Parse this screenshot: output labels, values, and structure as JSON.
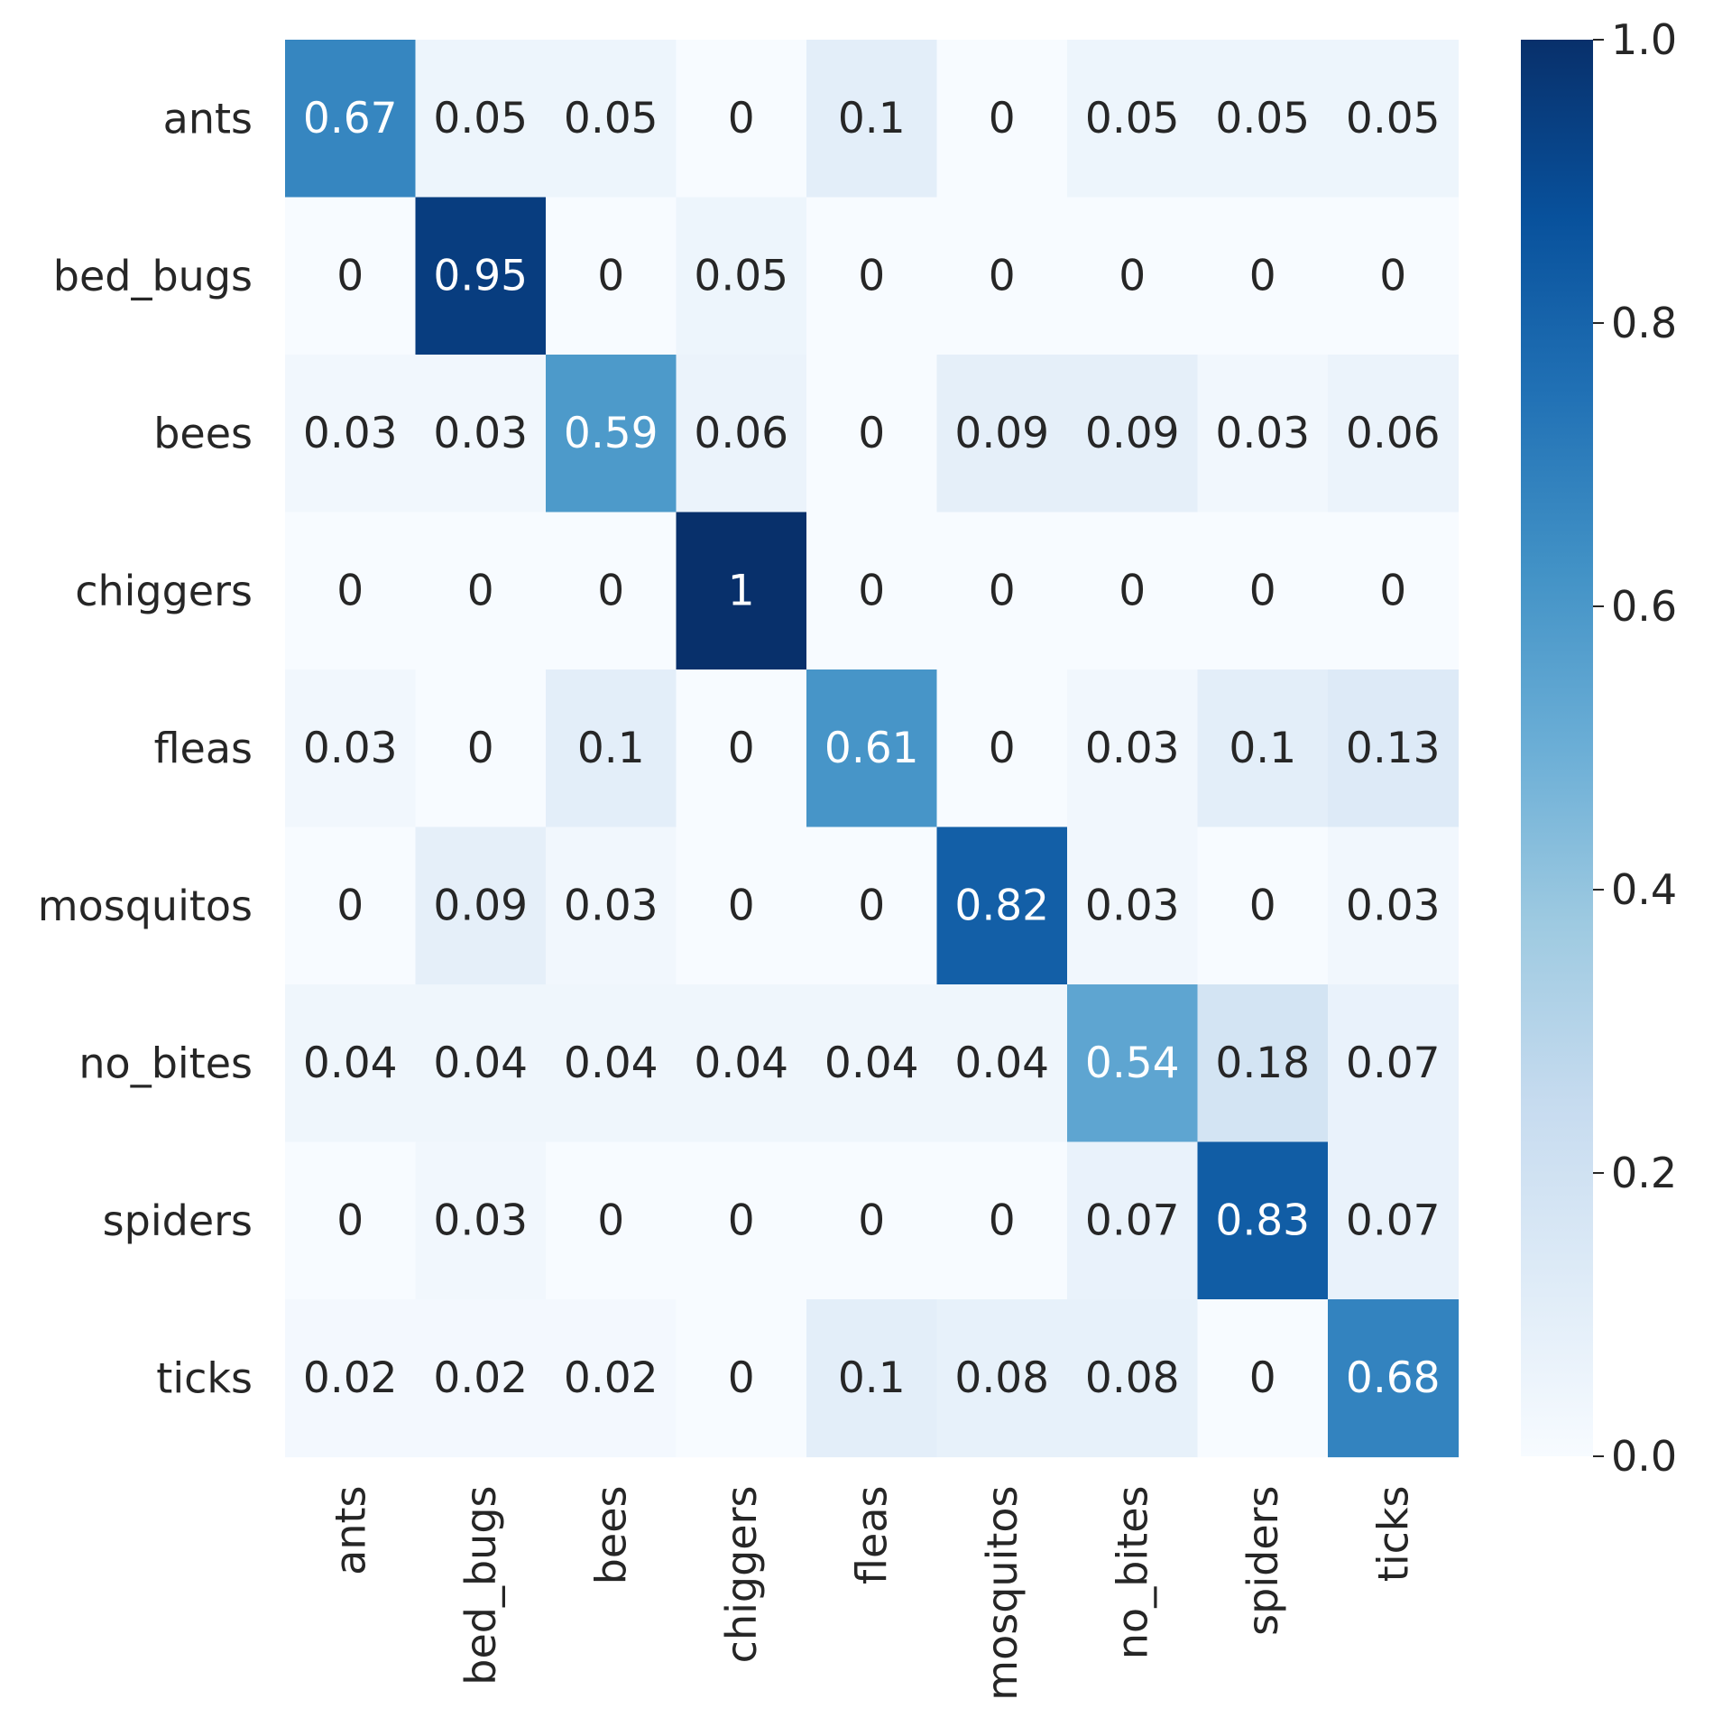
{
  "chart_data": {
    "type": "heatmap",
    "title": "",
    "xlabel": "",
    "ylabel": "",
    "colormap": "Blues",
    "value_range": [
      0.0,
      1.0
    ],
    "rows": [
      "ants",
      "bed_bugs",
      "bees",
      "chiggers",
      "fleas",
      "mosquitos",
      "no_bites",
      "spiders",
      "ticks"
    ],
    "columns": [
      "ants",
      "bed_bugs",
      "bees",
      "chiggers",
      "fleas",
      "mosquitos",
      "no_bites",
      "spiders",
      "ticks"
    ],
    "values": [
      [
        0.67,
        0.05,
        0.05,
        0,
        0.1,
        0,
        0.05,
        0.05,
        0.05
      ],
      [
        0,
        0.95,
        0,
        0.05,
        0,
        0,
        0,
        0,
        0
      ],
      [
        0.03,
        0.03,
        0.59,
        0.06,
        0,
        0.09,
        0.09,
        0.03,
        0.06
      ],
      [
        0,
        0,
        0,
        1,
        0,
        0,
        0,
        0,
        0
      ],
      [
        0.03,
        0,
        0.1,
        0,
        0.61,
        0,
        0.03,
        0.1,
        0.13
      ],
      [
        0,
        0.09,
        0.03,
        0,
        0,
        0.82,
        0.03,
        0,
        0.03
      ],
      [
        0.04,
        0.04,
        0.04,
        0.04,
        0.04,
        0.04,
        0.54,
        0.18,
        0.07
      ],
      [
        0,
        0.03,
        0,
        0,
        0,
        0,
        0.07,
        0.83,
        0.07
      ],
      [
        0.02,
        0.02,
        0.02,
        0,
        0.1,
        0.08,
        0.08,
        0,
        0.68
      ]
    ],
    "colorbar": {
      "ticks": [
        0.0,
        0.2,
        0.4,
        0.6,
        0.8,
        1.0
      ],
      "tick_labels": [
        "0.0",
        "0.2",
        "0.4",
        "0.6",
        "0.8",
        "1.0"
      ]
    }
  }
}
